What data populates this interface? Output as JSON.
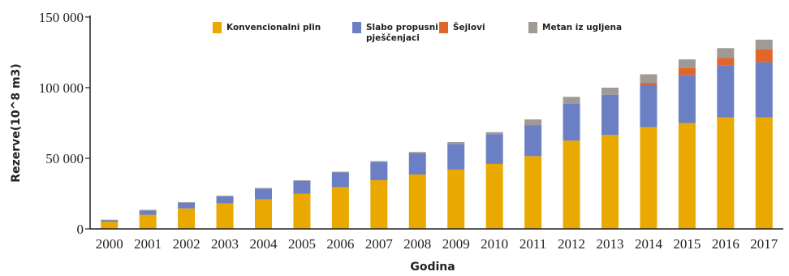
{
  "chart_data": {
    "type": "bar",
    "stacked": true,
    "title": "",
    "xlabel": "Godina",
    "ylabel": "Rezerve(10^8 m3)",
    "ylim": [
      0,
      150000
    ],
    "yticks": [
      0,
      50000,
      100000,
      150000
    ],
    "ytick_labels": [
      "0",
      "50 000",
      "100 000",
      "150 000"
    ],
    "categories": [
      "2000",
      "2001",
      "2002",
      "2003",
      "2004",
      "2005",
      "2006",
      "2007",
      "2008",
      "2009",
      "2010",
      "2011",
      "2012",
      "2013",
      "2014",
      "2015",
      "2016",
      "2017"
    ],
    "grid": false,
    "legend_position": "top-center",
    "series": [
      {
        "name": "Konvencionalni plin",
        "color": "#e9a900",
        "values": [
          5000,
          10000,
          14500,
          18000,
          21000,
          25000,
          29500,
          34500,
          38500,
          42000,
          46000,
          51500,
          62500,
          66500,
          72000,
          75000,
          79000,
          79000
        ]
      },
      {
        "name": "Slabo propusni pješčenjaci",
        "color": "#6b7fc4",
        "values": [
          1000,
          3000,
          4000,
          5000,
          7500,
          9000,
          10500,
          13000,
          15000,
          18000,
          21000,
          22000,
          26000,
          28500,
          30000,
          34000,
          37000,
          39000
        ]
      },
      {
        "name": "Šejlovi",
        "color": "#e0662a",
        "values": [
          0,
          0,
          0,
          0,
          0,
          0,
          0,
          0,
          0,
          0,
          0,
          0,
          0,
          0,
          1500,
          5000,
          5000,
          9000
        ]
      },
      {
        "name": "Metan iz ugljena",
        "color": "#a09a94",
        "values": [
          500,
          500,
          500,
          500,
          500,
          500,
          500,
          500,
          1000,
          1500,
          1500,
          4000,
          5000,
          5000,
          6000,
          6000,
          7000,
          7000
        ]
      }
    ]
  }
}
